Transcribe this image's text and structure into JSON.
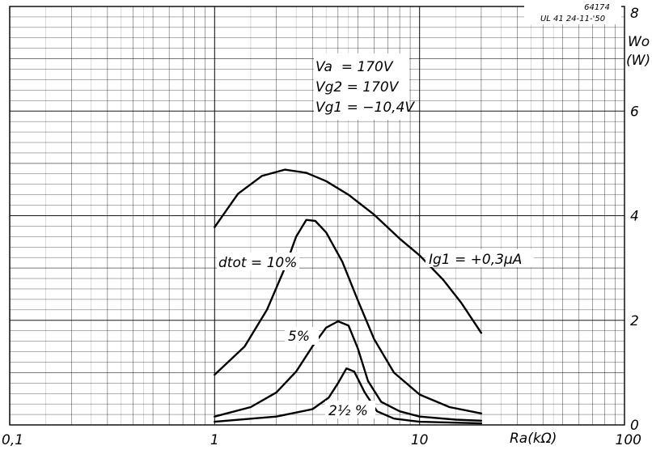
{
  "chart_data": {
    "type": "line",
    "xscale": "log",
    "xlim": [
      0.1,
      100
    ],
    "ylim": [
      0,
      8
    ],
    "grid": true,
    "drawing_code": "64174",
    "drawing_ref": "UL 41  24-11-'50",
    "xlabel": "Ra(kΩ)",
    "ylabel": "Wo",
    "ylabel_unit": "(W)",
    "x_ticks": [
      {
        "value": 0.1,
        "label": "0,1"
      },
      {
        "value": 1,
        "label": "1"
      },
      {
        "value": 10,
        "label": "10"
      },
      {
        "value": 100,
        "label": "100"
      }
    ],
    "y_ticks": [
      {
        "value": 0,
        "label": "0"
      },
      {
        "value": 2,
        "label": "2"
      },
      {
        "value": 4,
        "label": "4"
      },
      {
        "value": 6,
        "label": "6"
      },
      {
        "value": 8,
        "label": "8"
      }
    ],
    "conditions": [
      "Va  = 170V",
      "Vg2 = 170V",
      "Vg1 = −10,4V"
    ],
    "series": [
      {
        "name": "Ig1 = +0,3μA",
        "points": [
          [
            1.0,
            3.78
          ],
          [
            1.3,
            4.42
          ],
          [
            1.7,
            4.76
          ],
          [
            2.2,
            4.88
          ],
          [
            2.8,
            4.82
          ],
          [
            3.5,
            4.66
          ],
          [
            4.5,
            4.4
          ],
          [
            6.0,
            4.02
          ],
          [
            8.0,
            3.56
          ],
          [
            10.0,
            3.24
          ],
          [
            13.0,
            2.78
          ],
          [
            16.0,
            2.33
          ],
          [
            20.0,
            1.76
          ]
        ]
      },
      {
        "name": "dtot = 10%",
        "points": [
          [
            1.0,
            0.96
          ],
          [
            1.4,
            1.5
          ],
          [
            1.8,
            2.2
          ],
          [
            2.2,
            3.0
          ],
          [
            2.5,
            3.6
          ],
          [
            2.8,
            3.92
          ],
          [
            3.1,
            3.9
          ],
          [
            3.5,
            3.68
          ],
          [
            4.2,
            3.12
          ],
          [
            5.0,
            2.38
          ],
          [
            6.0,
            1.64
          ],
          [
            7.5,
            1.0
          ],
          [
            10.0,
            0.58
          ],
          [
            14.0,
            0.34
          ],
          [
            20.0,
            0.22
          ]
        ]
      },
      {
        "name": "5%",
        "points": [
          [
            1.0,
            0.16
          ],
          [
            1.5,
            0.34
          ],
          [
            2.0,
            0.62
          ],
          [
            2.5,
            1.02
          ],
          [
            3.0,
            1.5
          ],
          [
            3.5,
            1.86
          ],
          [
            4.0,
            1.98
          ],
          [
            4.5,
            1.9
          ],
          [
            5.0,
            1.46
          ],
          [
            5.6,
            0.84
          ],
          [
            6.5,
            0.44
          ],
          [
            8.0,
            0.26
          ],
          [
            10.0,
            0.16
          ],
          [
            15.0,
            0.1
          ],
          [
            20.0,
            0.08
          ]
        ]
      },
      {
        "name": "2½ %",
        "points": [
          [
            1.0,
            0.06
          ],
          [
            2.0,
            0.16
          ],
          [
            3.0,
            0.3
          ],
          [
            3.6,
            0.52
          ],
          [
            4.0,
            0.8
          ],
          [
            4.4,
            1.08
          ],
          [
            4.8,
            1.02
          ],
          [
            5.4,
            0.62
          ],
          [
            6.2,
            0.26
          ],
          [
            7.5,
            0.12
          ],
          [
            10.0,
            0.06
          ],
          [
            20.0,
            0.03
          ]
        ]
      }
    ]
  }
}
